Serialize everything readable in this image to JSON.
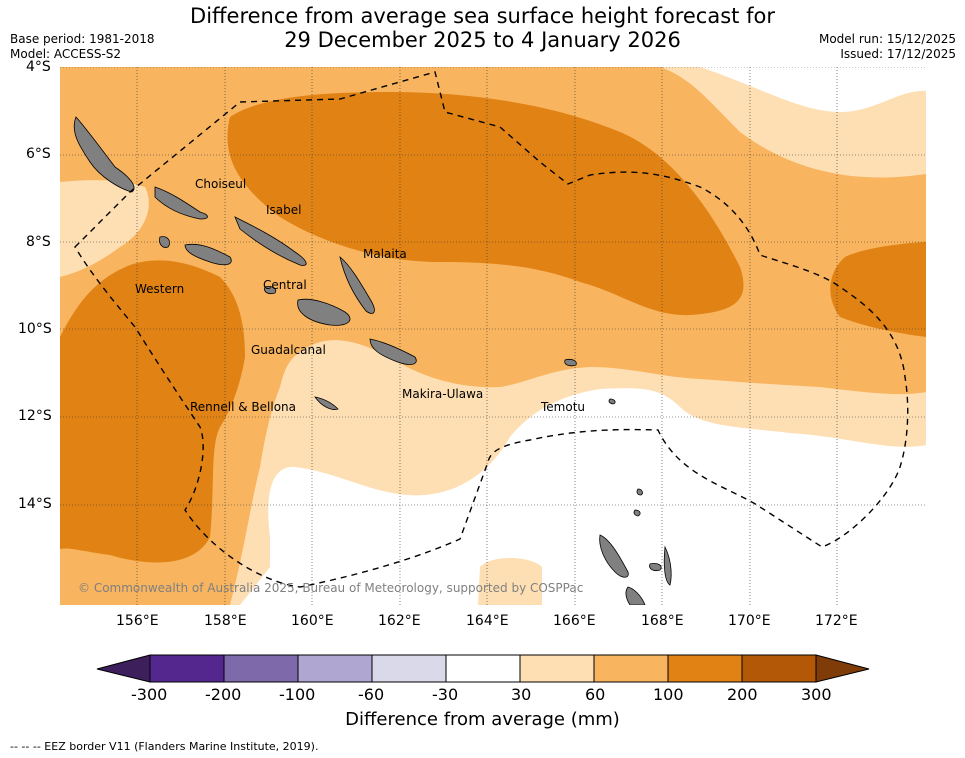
{
  "header": {
    "title_line1": "Difference from average sea surface height forecast for",
    "title_line2": "29 December 2025 to 4 January 2026",
    "base_period": "Base period: 1981-2018",
    "model": "Model: ACCESS-S2",
    "model_run": "Model run: 15/12/2025",
    "issued": "Issued: 17/12/2025"
  },
  "map": {
    "lat_labels": [
      "4°S",
      "6°S",
      "8°S",
      "10°S",
      "12°S",
      "14°S"
    ],
    "lon_labels": [
      "156°E",
      "158°E",
      "160°E",
      "162°E",
      "164°E",
      "166°E",
      "168°E",
      "170°E",
      "172°E"
    ],
    "places": [
      "Choiseul",
      "Isabel",
      "Malaita",
      "Western",
      "Central",
      "Guadalcanal",
      "Makira-Ulawa",
      "Rennell & Bellona",
      "Temotu"
    ],
    "copyright": "© Commonwealth of Australia 2025, Bureau of Meteorology, supported by COSPPac",
    "land_color": "#808080"
  },
  "colorbar": {
    "ticks": [
      "-300",
      "-200",
      "-100",
      "-60",
      "-30",
      "30",
      "60",
      "100",
      "200",
      "300"
    ],
    "colors": [
      "#3d1f5c",
      "#54278f",
      "#7e6aab",
      "#afa6d1",
      "#d9d9ea",
      "#ffffff",
      "#fedfb3",
      "#f8b45e",
      "#e08214",
      "#b35806",
      "#7f3b08"
    ],
    "title": "Difference from average (mm)"
  },
  "footer": {
    "legend": "--  --  -- EEZ border V11 (Flanders Marine Institute, 2019)."
  }
}
